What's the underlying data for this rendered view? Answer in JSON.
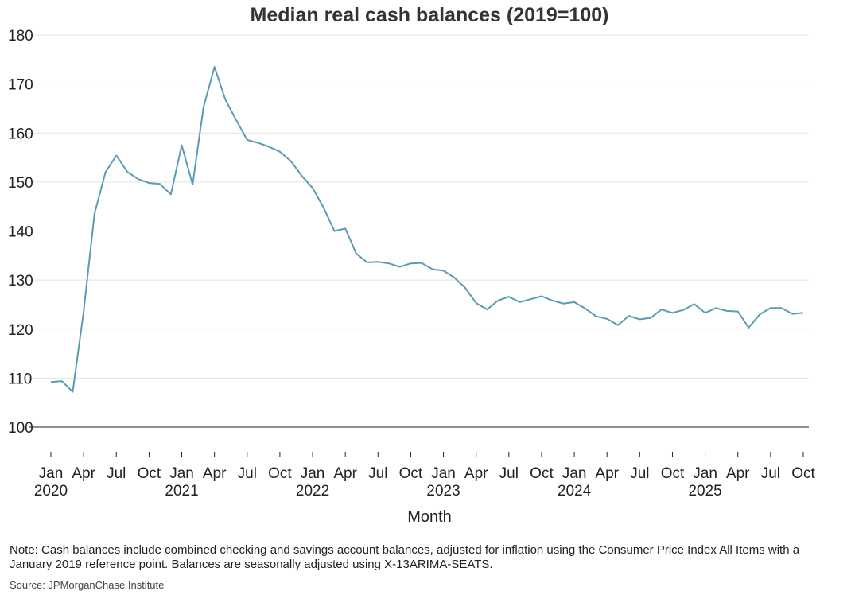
{
  "chart_data": {
    "type": "line",
    "title": "Median real cash balances (2019=100)",
    "xlabel": "Month",
    "ylabel": "",
    "ylim": [
      95,
      180
    ],
    "yticks": [
      100,
      110,
      120,
      130,
      140,
      150,
      160,
      170,
      180
    ],
    "grid": true,
    "x_ticks": [
      {
        "month": 0,
        "label": "Jan",
        "year": "2020"
      },
      {
        "month": 3,
        "label": "Apr"
      },
      {
        "month": 6,
        "label": "Jul"
      },
      {
        "month": 9,
        "label": "Oct"
      },
      {
        "month": 12,
        "label": "Jan",
        "year": "2021"
      },
      {
        "month": 15,
        "label": "Apr"
      },
      {
        "month": 18,
        "label": "Jul"
      },
      {
        "month": 21,
        "label": "Oct"
      },
      {
        "month": 24,
        "label": "Jan",
        "year": "2022"
      },
      {
        "month": 27,
        "label": "Apr"
      },
      {
        "month": 30,
        "label": "Jul"
      },
      {
        "month": 33,
        "label": "Oct"
      },
      {
        "month": 36,
        "label": "Jan",
        "year": "2023"
      },
      {
        "month": 39,
        "label": "Apr"
      },
      {
        "month": 42,
        "label": "Jul"
      },
      {
        "month": 45,
        "label": "Oct"
      },
      {
        "month": 48,
        "label": "Jan",
        "year": "2024"
      },
      {
        "month": 51,
        "label": "Apr"
      },
      {
        "month": 54,
        "label": "Jul"
      },
      {
        "month": 57,
        "label": "Oct"
      },
      {
        "month": 60,
        "label": "Jan",
        "year": "2025"
      },
      {
        "month": 63,
        "label": "Apr"
      },
      {
        "month": 66,
        "label": "Jul"
      },
      {
        "month": 69,
        "label": "Oct"
      }
    ],
    "x_start": "2020-01",
    "x_end": "2025-10",
    "series": [
      {
        "color": "#5b9bb3",
        "values": [
          109.2,
          109.4,
          107.2,
          123.5,
          143.5,
          152.0,
          155.4,
          152.1,
          150.6,
          149.8,
          149.6,
          147.5,
          157.5,
          149.5,
          165.3,
          173.5,
          166.8,
          162.6,
          158.6,
          158.0,
          157.2,
          156.2,
          154.3,
          151.3,
          148.8,
          144.8,
          140.0,
          140.5,
          135.4,
          133.6,
          133.7,
          133.4,
          132.7,
          133.4,
          133.5,
          132.2,
          131.9,
          130.5,
          128.4,
          125.3,
          124.0,
          125.8,
          126.6,
          125.5,
          126.1,
          126.7,
          125.8,
          125.2,
          125.5,
          124.2,
          122.6,
          122.1,
          120.8,
          122.7,
          122.0,
          122.3,
          124.0,
          123.3,
          123.9,
          125.1,
          123.3,
          124.3,
          123.7,
          123.6,
          120.3,
          123.0,
          124.3,
          124.3,
          123.1,
          123.3
        ]
      }
    ],
    "reference_line": 100
  },
  "note": "Note: Cash balances include combined checking and savings account balances, adjusted for inflation using the Consumer Price Index All Items with a January 2019 reference point. Balances are seasonally adjusted using X-13ARIMA-SEATS.",
  "source": "Source: JPMorganChase Institute"
}
